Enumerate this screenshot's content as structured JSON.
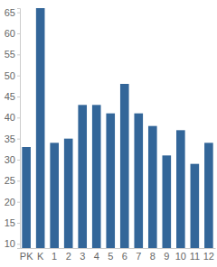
{
  "chart_data": {
    "type": "bar",
    "categories": [
      "PK",
      "K",
      "1",
      "2",
      "3",
      "4",
      "5",
      "6",
      "7",
      "8",
      "9",
      "10",
      "11",
      "12"
    ],
    "values": [
      33,
      66,
      34,
      35,
      43,
      43,
      41,
      48,
      41,
      38,
      31,
      37,
      29,
      34
    ],
    "color": "#336699",
    "ylim": [
      9,
      66
    ],
    "yticks": [
      10,
      15,
      20,
      25,
      30,
      35,
      40,
      45,
      50,
      55,
      60,
      65
    ],
    "grid": false
  }
}
